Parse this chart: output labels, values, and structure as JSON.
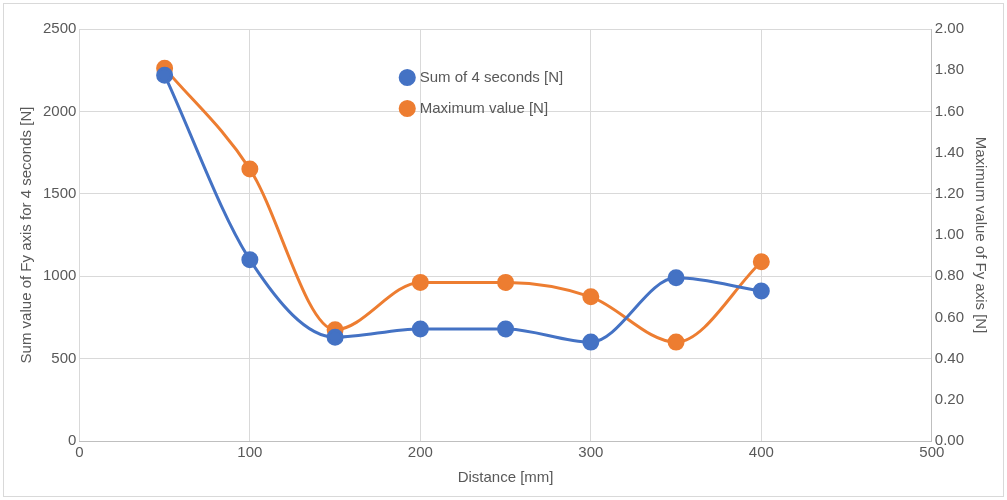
{
  "chart_data": {
    "type": "line",
    "xlabel": "Distance [mm]",
    "ylabel": "Sum value of Fy axis for 4 seconds [N]",
    "y2label": "Maximum value of Fy axis [N]",
    "x": [
      50,
      100,
      150,
      200,
      250,
      300,
      350,
      400
    ],
    "series": [
      {
        "name": "Sum of 4 seconds [N]",
        "color": "#4472c4",
        "values": [
          2220,
          1100,
          630,
          680,
          680,
          600,
          990,
          910
        ]
      },
      {
        "name": "Maximum value [N]",
        "color": "#ed7d31",
        "axis": "y2",
        "values": [
          1.81,
          1.32,
          0.54,
          0.77,
          0.77,
          0.7,
          0.48,
          0.87
        ]
      }
    ],
    "xlim": [
      0,
      500
    ],
    "xticks": [
      0,
      100,
      200,
      300,
      400,
      500
    ],
    "ylim": [
      0,
      2500
    ],
    "yticks": [
      0,
      500,
      1000,
      1500,
      2000,
      2500
    ],
    "y2lim": [
      0,
      2
    ],
    "y2ticks": [
      {
        "value": 0,
        "label": "0.00"
      },
      {
        "value": 0.2,
        "label": "0.20"
      },
      {
        "value": 0.4,
        "label": "0.40"
      },
      {
        "value": 0.6,
        "label": "0.60"
      },
      {
        "value": 0.8,
        "label": "0.80"
      },
      {
        "value": 1,
        "label": "1.00"
      },
      {
        "value": 1.2,
        "label": "1.20"
      },
      {
        "value": 1.4,
        "label": "1.40"
      },
      {
        "value": 1.6,
        "label": "1.60"
      },
      {
        "value": 1.8,
        "label": "1.80"
      },
      {
        "value": 2,
        "label": "2.00"
      }
    ],
    "grid": true,
    "legend": "top",
    "marker": "circle",
    "line_style": "solid"
  }
}
